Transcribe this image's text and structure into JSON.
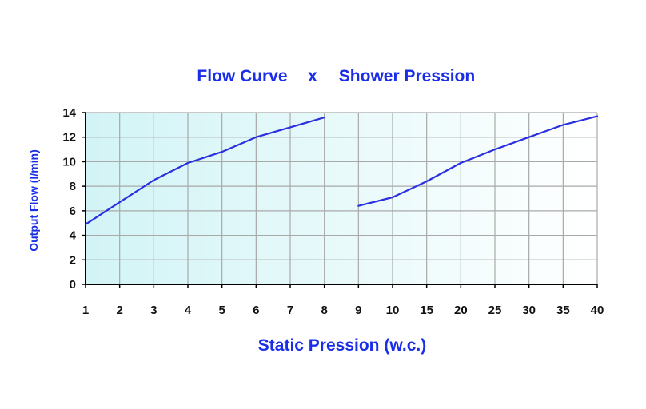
{
  "chart_data": {
    "type": "line",
    "title_parts": [
      "Flow Curve",
      "x",
      "Shower Pression"
    ],
    "xlabel": "Static Pression (w.c.)",
    "ylabel": "Output Flow (l/min)",
    "categories": [
      "1",
      "2",
      "3",
      "4",
      "5",
      "6",
      "7",
      "8",
      "9",
      "10",
      "15",
      "20",
      "25",
      "30",
      "35",
      "40"
    ],
    "yticks": [
      "0",
      "2",
      "4",
      "6",
      "8",
      "10",
      "12",
      "14"
    ],
    "ylim": [
      0,
      14
    ],
    "grid": true,
    "series": [
      {
        "segment": 1,
        "x": [
          "1",
          "2",
          "3",
          "4",
          "5",
          "6",
          "7",
          "8"
        ],
        "values": [
          4.9,
          6.7,
          8.5,
          9.9,
          10.8,
          12.0,
          12.8,
          13.6
        ]
      },
      {
        "segment": 2,
        "x": [
          "9",
          "10",
          "15",
          "20",
          "25",
          "30",
          "35",
          "40"
        ],
        "values": [
          6.4,
          7.1,
          8.4,
          9.9,
          11.0,
          12.0,
          13.0,
          13.7
        ]
      }
    ],
    "colors": {
      "line": "#2a2fe0",
      "text": "#1a2ee8",
      "grid": "#a9a9a9",
      "axis": "#000000",
      "bg_left": "#d2f4f6",
      "bg_right": "#ffffff"
    }
  }
}
